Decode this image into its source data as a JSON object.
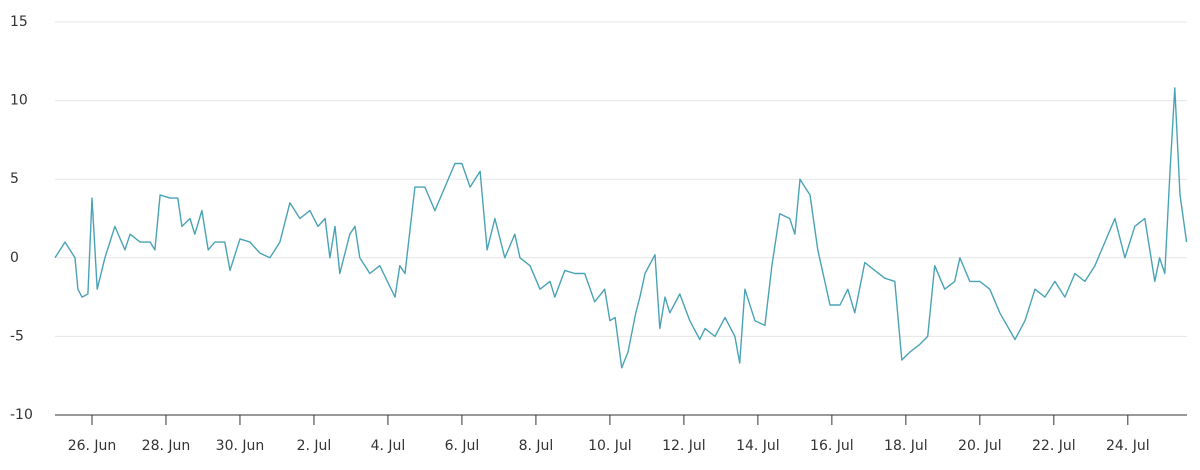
{
  "chart_data": {
    "type": "line",
    "x": [
      -1.0,
      -0.73,
      -0.46,
      -0.38,
      -0.27,
      -0.11,
      0,
      0.14,
      0.35,
      0.62,
      0.89,
      1.03,
      1.3,
      1.57,
      1.7,
      1.84,
      2.11,
      2.32,
      2.43,
      2.65,
      2.78,
      2.97,
      3.14,
      3.32,
      3.59,
      3.73,
      4.0,
      4.27,
      4.54,
      4.81,
      5.08,
      5.35,
      5.62,
      5.89,
      6.11,
      6.3,
      6.43,
      6.57,
      6.7,
      6.97,
      7.11,
      7.24,
      7.51,
      7.78,
      8.19,
      8.32,
      8.46,
      8.73,
      9.0,
      9.27,
      9.54,
      9.81,
      10.0,
      10.22,
      10.49,
      10.68,
      10.89,
      11.16,
      11.43,
      11.57,
      11.84,
      12.11,
      12.38,
      12.51,
      12.78,
      13.05,
      13.32,
      13.59,
      13.86,
      14.0,
      14.14,
      14.32,
      14.49,
      14.7,
      14.81,
      14.95,
      15.22,
      15.35,
      15.49,
      15.62,
      15.89,
      16.16,
      16.43,
      16.57,
      16.84,
      17.11,
      17.38,
      17.51,
      17.65,
      17.92,
      18.19,
      18.38,
      18.59,
      18.86,
      19.0,
      19.14,
      19.27,
      19.41,
      19.62,
      19.81,
      19.95,
      20.22,
      20.43,
      20.62,
      20.89,
      21.16,
      21.43,
      21.7,
      21.89,
      22.11,
      22.38,
      22.59,
      22.78,
      23.05,
      23.32,
      23.46,
      23.73,
      24.0,
      24.27,
      24.54,
      24.95,
      25.22,
      25.49,
      25.76,
      26.03,
      26.3,
      26.57,
      26.84,
      27.11,
      27.38,
      27.65,
      27.92,
      28.19,
      28.46,
      28.73,
      28.86,
      29.0,
      29.14,
      29.27,
      29.41,
      29.59
    ],
    "series": [
      {
        "color": "#4aa3b5",
        "values": [
          0,
          1,
          0,
          -2,
          -2.5,
          -2.3,
          3.8,
          -2,
          0,
          2,
          0.5,
          1.5,
          1,
          1,
          0.5,
          4,
          3.8,
          3.8,
          2,
          2.5,
          1.5,
          3,
          0.5,
          1,
          1,
          -0.8,
          1.2,
          1,
          0.3,
          0,
          1,
          3.5,
          2.5,
          3,
          2,
          2.5,
          0,
          2,
          -1,
          1.5,
          2,
          0,
          -1,
          -0.5,
          -2.5,
          -0.5,
          -1,
          4.5,
          4.5,
          3,
          4.5,
          6,
          6,
          4.5,
          5.5,
          0.5,
          2.5,
          0,
          1.5,
          0,
          -0.5,
          -2,
          -1.5,
          -2.5,
          -0.8,
          -1,
          -1,
          -2.8,
          -2,
          -4,
          -3.8,
          -7,
          -6,
          -3.5,
          -2.5,
          -1,
          0.2,
          -4.5,
          -2.5,
          -3.5,
          -2.3,
          -4,
          -5.2,
          -4.5,
          -5,
          -3.8,
          -5,
          -6.7,
          -2,
          -4,
          -4.3,
          -0.5,
          2.8,
          2.5,
          1.5,
          5,
          4.5,
          4,
          0.5,
          -1.5,
          -3,
          -3,
          -2,
          -3.5,
          -0.3,
          -0.8,
          -1.3,
          -1.5,
          -6.5,
          -6,
          -5.5,
          -5,
          -0.5,
          -2,
          -1.5,
          0,
          -1.5,
          -1.5,
          -2,
          -3.5,
          -5.2,
          -4,
          -2,
          -2.5,
          -1.5,
          -2.5,
          -1,
          -1.5,
          -0.5,
          1,
          2.5,
          0,
          2,
          2.5,
          -1.5,
          0,
          -1,
          5.5,
          10.8,
          4,
          1
        ]
      }
    ],
    "xlim": [
      -1,
      29.6
    ],
    "xticks": [
      {
        "value": 0,
        "label": "26. Jun"
      },
      {
        "value": 2,
        "label": "28. Jun"
      },
      {
        "value": 4,
        "label": "30. Jun"
      },
      {
        "value": 6,
        "label": "2. Jul"
      },
      {
        "value": 8,
        "label": "4. Jul"
      },
      {
        "value": 10,
        "label": "6. Jul"
      },
      {
        "value": 12,
        "label": "8. Jul"
      },
      {
        "value": 14,
        "label": "10. Jul"
      },
      {
        "value": 16,
        "label": "12. Jul"
      },
      {
        "value": 18,
        "label": "14. Jul"
      },
      {
        "value": 20,
        "label": "16. Jul"
      },
      {
        "value": 22,
        "label": "18. Jul"
      },
      {
        "value": 24,
        "label": "20. Jul"
      },
      {
        "value": 26,
        "label": "22. Jul"
      },
      {
        "value": 28,
        "label": "24. Jul"
      }
    ],
    "ylim": [
      -10,
      15
    ],
    "yticks": [
      -10,
      -5,
      0,
      5,
      10,
      15
    ],
    "grid": true
  }
}
